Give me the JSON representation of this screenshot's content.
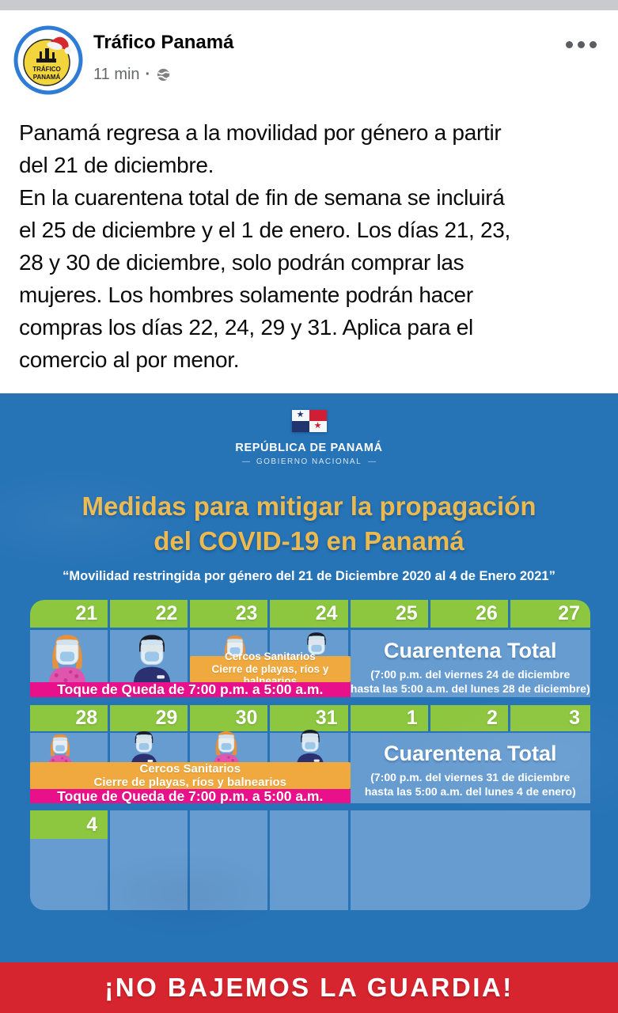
{
  "post": {
    "author": "Tráfico Panamá",
    "time": "11 min",
    "meta_separator": "·",
    "avatar": {
      "line1": "TRÁFICO",
      "line2": "PANAMÁ"
    },
    "text_lines": [
      "Panamá regresa a la movilidad por género a partir",
      "del 21 de diciembre.",
      "En la cuarentena total de fin de semana se incluirá",
      "el 25 de diciembre y el 1 de enero. Los días 21, 23,",
      "28 y 30 de diciembre, solo podrán comprar las",
      "mujeres. Los hombres solamente podrán hacer",
      "compras los días 22, 24, 29 y 31. Aplica para el",
      "comercio al por menor."
    ]
  },
  "infographic": {
    "gov_republic": "REPÚBLICA DE PANAMÁ",
    "gov_national": "GOBIERNO NACIONAL",
    "title_line1": "Medidas para mitigar la propagación",
    "title_line2": "del COVID-19 en Panamá",
    "subtitle": "“Movilidad restringida por género del 21 de Diciembre 2020 al 4 de Enero 2021”",
    "calendar": {
      "week1": {
        "days": [
          "21",
          "22",
          "23",
          "24"
        ],
        "quarantine_days": [
          "25",
          "26",
          "27"
        ],
        "sanitary_line1": "Cercos Sanitarios",
        "sanitary_line2": "Cierre de playas, ríos y balnearios",
        "curfew": "Toque de Queda de 7:00 p.m. a 5:00 a.m.",
        "quarantine_title": "Cuarentena Total",
        "quarantine_detail1": "(7:00 p.m. del viernes 24 de diciembre",
        "quarantine_detail2": "hasta las 5:00 a.m. del lunes 28 de diciembre)"
      },
      "week2": {
        "days": [
          "28",
          "29",
          "30",
          "31"
        ],
        "quarantine_days": [
          "1",
          "2",
          "3"
        ],
        "sanitary_line1": "Cercos Sanitarios",
        "sanitary_line2": "Cierre de playas, ríos y balnearios",
        "curfew": "Toque de Queda de 7:00 p.m. a 5:00 a.m.",
        "quarantine_title": "Cuarentena Total",
        "quarantine_detail1": "(7:00 p.m. del viernes 31 de diciembre",
        "quarantine_detail2": "hasta las 5:00 a.m. del lunes 4 de enero)"
      },
      "week3": {
        "day": "4"
      }
    },
    "footer": "¡NO BAJEMOS LA GUARDIA!"
  },
  "colors": {
    "background_blue": "#2673b6",
    "cell_blue": "#679cd0",
    "header_green": "#8dc63f",
    "banner_orange": "#efa93f",
    "banner_pink": "#e8118b",
    "title_yellow": "#ecb94f",
    "footer_red": "#d6252e",
    "meta_gray": "#65676b"
  }
}
